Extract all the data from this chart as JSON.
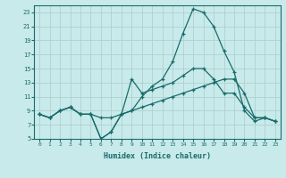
{
  "xlabel": "Humidex (Indice chaleur)",
  "bg_color": "#c8eaea",
  "grid_color": "#b0d0d0",
  "line_color": "#1a6b6b",
  "xlim": [
    -0.5,
    23.5
  ],
  "ylim": [
    5,
    24
  ],
  "yticks": [
    5,
    7,
    9,
    11,
    13,
    15,
    17,
    19,
    21,
    23
  ],
  "xticks": [
    0,
    1,
    2,
    3,
    4,
    5,
    6,
    7,
    8,
    9,
    10,
    11,
    12,
    13,
    14,
    15,
    16,
    17,
    18,
    19,
    20,
    21,
    22,
    23
  ],
  "series1_x": [
    0,
    1,
    2,
    3,
    4,
    5,
    6,
    7,
    8,
    9,
    10,
    11,
    12,
    13,
    14,
    15,
    16,
    17,
    18,
    19,
    20,
    21,
    22,
    23
  ],
  "series1_y": [
    8.5,
    8.0,
    9.0,
    9.5,
    8.5,
    8.5,
    8.0,
    8.0,
    8.5,
    9.0,
    9.5,
    10.0,
    10.5,
    11.0,
    11.5,
    12.0,
    12.5,
    13.0,
    13.5,
    13.5,
    11.5,
    8.0,
    8.0,
    7.5
  ],
  "series2_x": [
    0,
    1,
    2,
    3,
    4,
    5,
    6,
    7,
    8,
    9,
    10,
    11,
    12,
    13,
    14,
    15,
    16,
    17,
    18,
    19,
    20,
    21,
    22,
    23
  ],
  "series2_y": [
    8.5,
    8.0,
    9.0,
    9.5,
    8.5,
    8.5,
    5.0,
    6.0,
    8.5,
    13.5,
    11.5,
    12.0,
    12.5,
    13.0,
    14.0,
    15.0,
    15.0,
    13.5,
    11.5,
    11.5,
    9.5,
    8.0,
    8.0,
    7.5
  ],
  "series3_x": [
    0,
    1,
    2,
    3,
    4,
    5,
    6,
    7,
    8,
    9,
    10,
    11,
    12,
    13,
    14,
    15,
    16,
    17,
    18,
    19,
    20,
    21,
    22,
    23
  ],
  "series3_y": [
    8.5,
    8.0,
    9.0,
    9.5,
    8.5,
    8.5,
    5.0,
    6.0,
    8.5,
    9.0,
    11.0,
    12.5,
    13.5,
    16.0,
    20.0,
    23.5,
    23.0,
    21.0,
    17.5,
    14.5,
    9.0,
    7.5,
    8.0,
    7.5
  ]
}
